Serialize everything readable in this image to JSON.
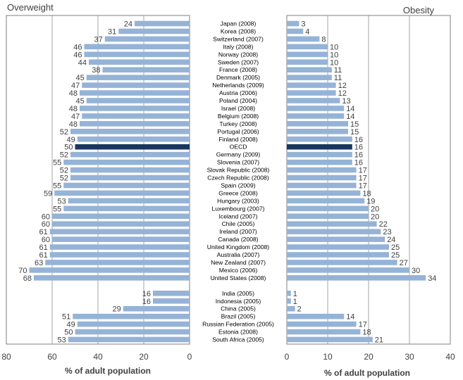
{
  "chart_data": {
    "type": "bar",
    "left_panel": {
      "title": "Overweight",
      "xlabel": "% of adult population",
      "xlim": [
        0,
        80
      ],
      "ticks": [
        "80",
        "60",
        "40",
        "20",
        "0"
      ],
      "direction": "reversed"
    },
    "right_panel": {
      "title": "Obesity",
      "xlabel": "% of adult population",
      "xlim": [
        0,
        40
      ],
      "ticks": [
        "0",
        "10",
        "20",
        "30",
        "40"
      ]
    },
    "grid": true,
    "colors": {
      "bar": "#95b3d7",
      "highlight": "#17375e",
      "grid": "#a6a6a6",
      "frame": "#7f7f7f",
      "text": "#404040"
    },
    "highlight_category": "OECD",
    "categories": [
      "Japan (2008)",
      "Korea (2008)",
      "Switzerland (2007)",
      "Italy (2008)",
      "Norway (2008)",
      "Sweden (2007)",
      "France (2008)",
      "Denmark (2005)",
      "Netherlands (2009)",
      "Austria (2006)",
      "Poland (2004)",
      "Israel (2008)",
      "Belgium (2008)",
      "Turkey (2008)",
      "Portugal (2006)",
      "Finland (2008)",
      "OECD",
      "Germany (2009)",
      "Slovenia (2007)",
      "Slovak Republic (2008)",
      "Czech Republic (2008)",
      "Spain (2009)",
      "Greece (2008)",
      "Hungary (2003)",
      "Luxembourg (2007)",
      "Iceland (2007)",
      "Chile (2005)",
      "Ireland (2007)",
      "Canada (2008)",
      "United Kingdom (2008)",
      "Australia (2007)",
      "New Zealand (2007)",
      "Mexico (2006)",
      "United States (2008)",
      "India (2005)",
      "Indonesia (2005)",
      "China (2005)",
      "Brazil (2005)",
      "Russian Federation (2005)",
      "Estonia (2008)",
      "South Africa (2005)"
    ],
    "group_sizes": [
      34,
      7
    ],
    "series": [
      {
        "values": [
          24,
          31,
          37,
          46,
          46,
          44,
          38,
          45,
          47,
          48,
          45,
          48,
          47,
          48,
          52,
          49,
          50,
          52,
          55,
          52,
          52,
          55,
          59,
          53,
          55,
          60,
          60,
          61,
          60,
          61,
          61,
          63,
          70,
          68,
          16,
          16,
          29,
          51,
          49,
          50,
          53
        ]
      },
      {
        "values": [
          3,
          4,
          8,
          10,
          10,
          10,
          11,
          11,
          12,
          12,
          13,
          14,
          14,
          15,
          15,
          16,
          16,
          16,
          16,
          17,
          17,
          17,
          18,
          19,
          20,
          20,
          22,
          23,
          24,
          25,
          25,
          27,
          30,
          34,
          1,
          1,
          2,
          14,
          17,
          18,
          21
        ]
      }
    ]
  }
}
